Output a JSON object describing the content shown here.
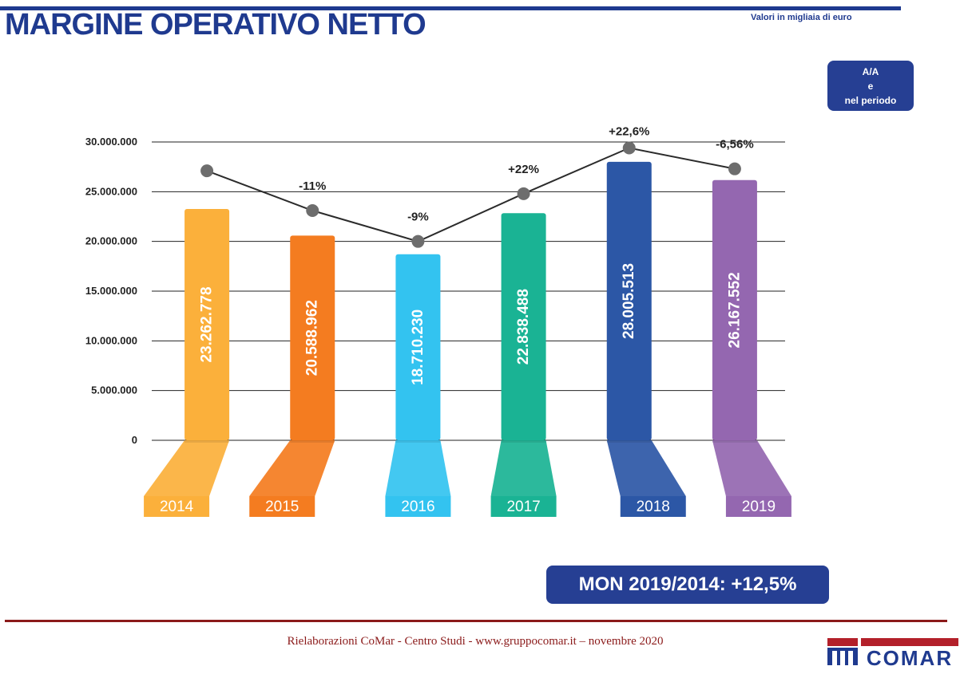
{
  "header": {
    "title": "MARGINE OPERATIVO NETTO",
    "unit_note": "Valori in migliaia di euro"
  },
  "aa_box": {
    "line1": "A/A",
    "line2": "e",
    "line3": "nel periodo"
  },
  "summary": {
    "text": "MON 2019/2014: +12,5%"
  },
  "footer": {
    "text": "Rielaborazioni CoMar - Centro Studi - www.gruppocomar.it – novembre 2020"
  },
  "logo": {
    "text": "COMAR",
    "colors": {
      "red": "#b3202a",
      "blue": "#1f3a8f"
    }
  },
  "chart_data": {
    "type": "bar",
    "categories": [
      "2014",
      "2015",
      "2016",
      "2017",
      "2018",
      "2019"
    ],
    "values": [
      23262778,
      20588962,
      18710230,
      22838488,
      28005513,
      26167552
    ],
    "value_labels": [
      "23.262.778",
      "20.588.962",
      "18.710.230",
      "22.838.488",
      "28.005.513",
      "26.167.552"
    ],
    "colors": [
      "#fbb03b",
      "#f47c20",
      "#33c3f0",
      "#1ab394",
      "#2c57a6",
      "#9467b0"
    ],
    "ylim": [
      0,
      30000000
    ],
    "yticks": [
      0,
      5000000,
      10000000,
      15000000,
      20000000,
      25000000,
      30000000
    ],
    "ytick_labels": [
      "0",
      "5.000.000",
      "10.000.000",
      "15.000.000",
      "20.000.000",
      "25.000.000",
      "30.000.000"
    ],
    "grid": true,
    "line_series": {
      "values": [
        27100000,
        23100000,
        20000000,
        24800000,
        29400000,
        27300000
      ],
      "labels": [
        "",
        "-11%",
        "-9%",
        "+22%",
        "+22,6%",
        "-6,56%"
      ],
      "color": "#2b2b2b",
      "marker_color": "#6d6d6d"
    }
  }
}
